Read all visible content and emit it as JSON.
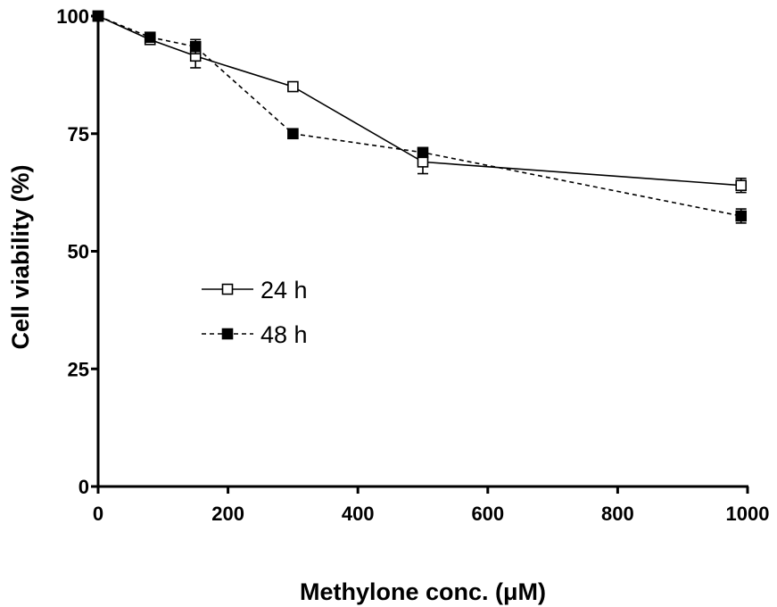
{
  "chart_data": {
    "type": "line",
    "title": "",
    "xlabel": "Methylone conc. (μM)",
    "ylabel": "Cell viability (%)",
    "xlim": [
      0,
      1000
    ],
    "ylim": [
      0,
      100
    ],
    "xticks": [
      0,
      200,
      400,
      600,
      800,
      1000
    ],
    "yticks": [
      0,
      25,
      50,
      75,
      100
    ],
    "grid": false,
    "legend_position": "center-left",
    "series": [
      {
        "name": "24 h",
        "line_style": "solid",
        "marker": "open-square",
        "color": "#000000",
        "x": [
          0,
          80,
          150,
          300,
          500,
          990
        ],
        "y": [
          100,
          95,
          91.5,
          85,
          69,
          64
        ],
        "error": [
          0,
          1,
          2.5,
          1,
          2.5,
          1.5
        ]
      },
      {
        "name": "48 h",
        "line_style": "dashed",
        "marker": "filled-square",
        "color": "#000000",
        "x": [
          0,
          80,
          150,
          300,
          500,
          990
        ],
        "y": [
          100,
          95.5,
          93.5,
          75,
          71,
          57.5
        ],
        "error": [
          0,
          1,
          1.5,
          1,
          1,
          1.5
        ]
      }
    ]
  }
}
